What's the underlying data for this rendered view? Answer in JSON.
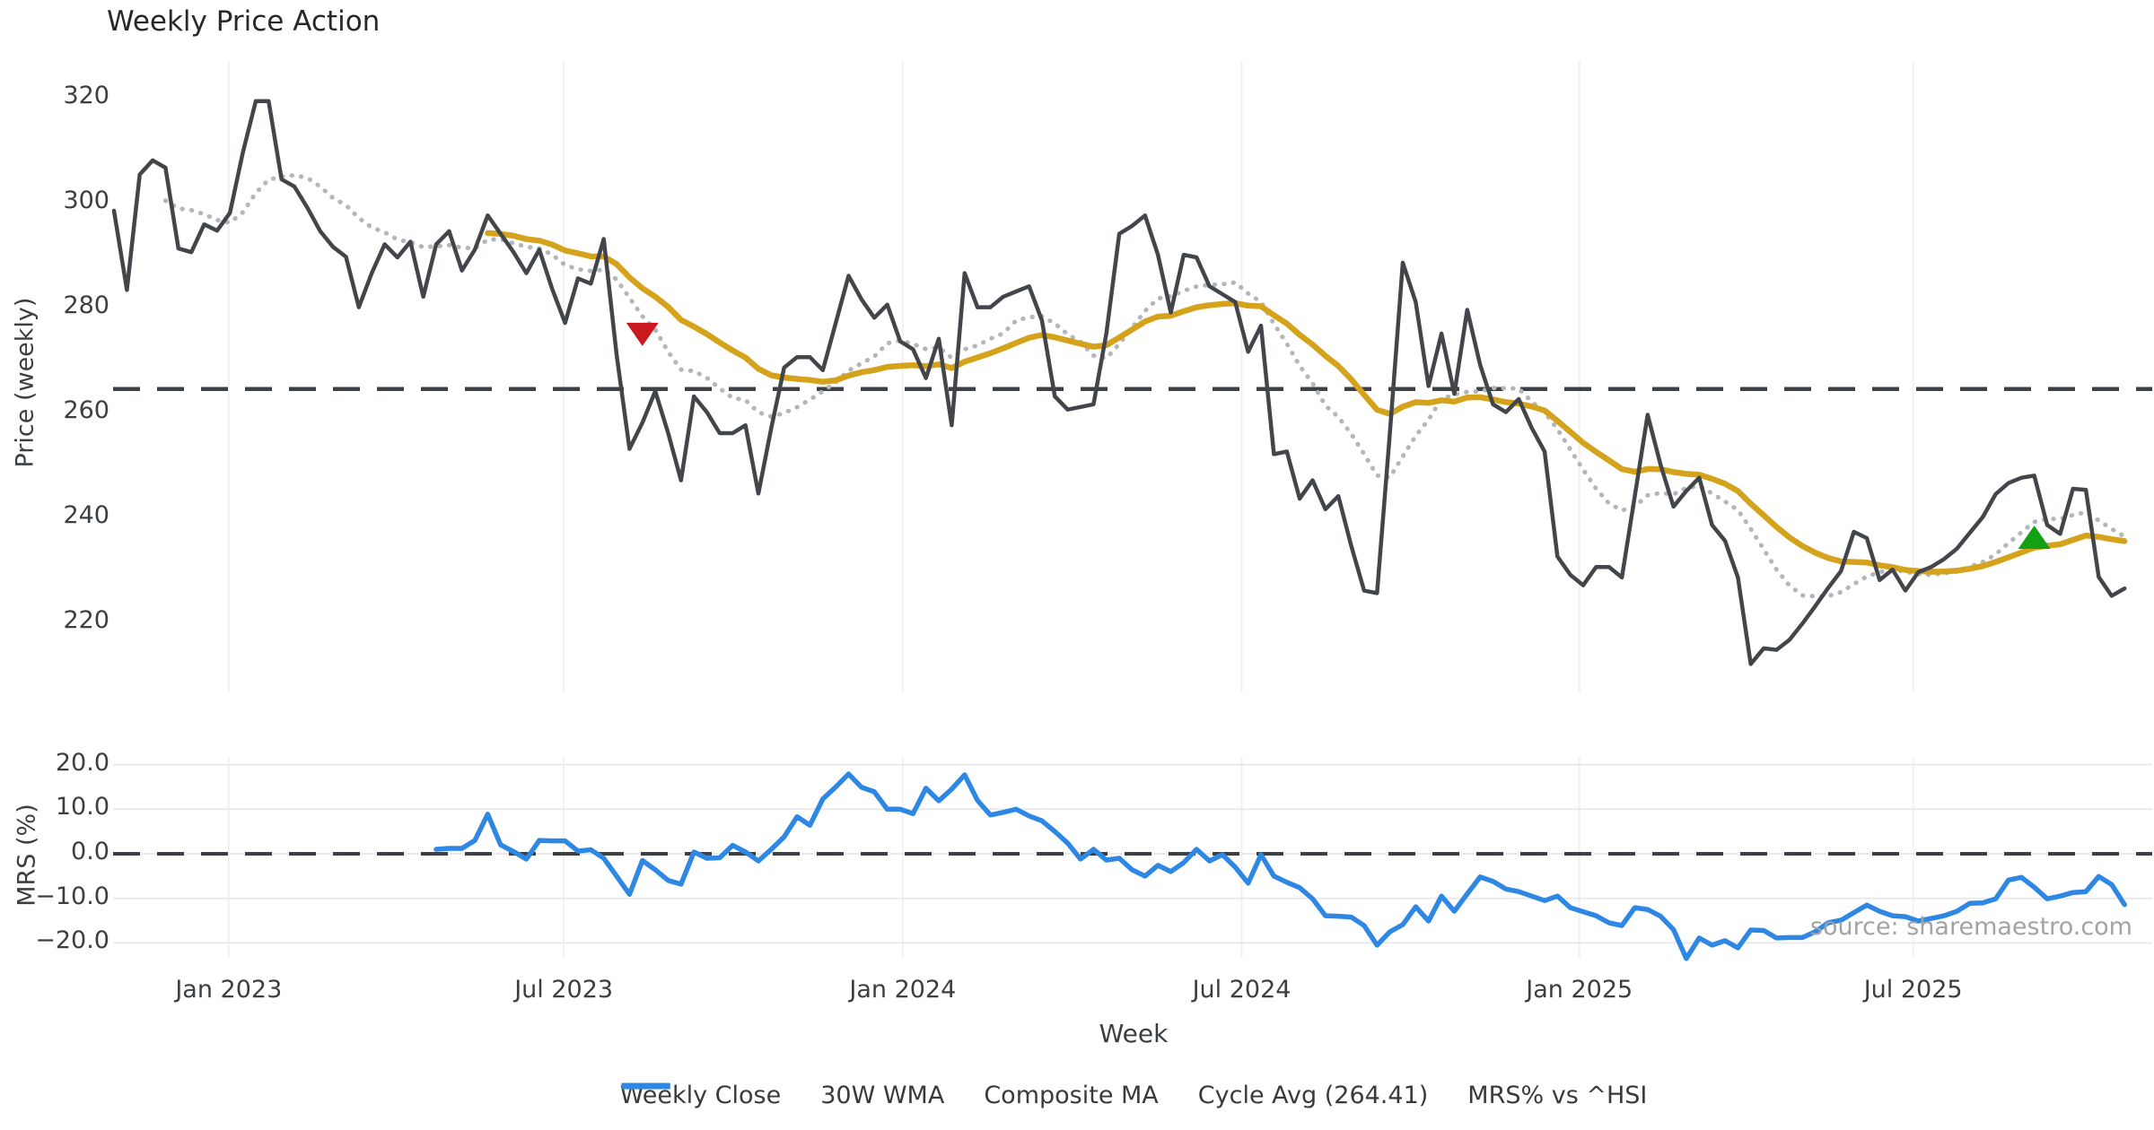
{
  "title": "Weekly Price Action",
  "source_text": "source: sharemaestro.com",
  "axes": {
    "price_label": "Price (weekly)",
    "mrs_label": "MRS (%)",
    "x_label": "Week",
    "price_ticks": [
      {
        "label": "320",
        "value": 320
      },
      {
        "label": "300",
        "value": 300
      },
      {
        "label": "280",
        "value": 280
      },
      {
        "label": "260",
        "value": 260
      },
      {
        "label": "240",
        "value": 240
      },
      {
        "label": "220",
        "value": 220
      }
    ],
    "mrs_ticks": [
      {
        "label": "20.0",
        "value": 20
      },
      {
        "label": "10.0",
        "value": 10
      },
      {
        "label": "0.0",
        "value": 0
      },
      {
        "label": "−10.0",
        "value": -10
      },
      {
        "label": "−20.0",
        "value": -20
      }
    ],
    "x_ticks": [
      {
        "label": "Jan 2023",
        "week": 8.9
      },
      {
        "label": "Jul 2023",
        "week": 34.9
      },
      {
        "label": "Jan 2024",
        "week": 61.2
      },
      {
        "label": "Jul 2024",
        "week": 87.5
      },
      {
        "label": "Jan 2025",
        "week": 113.7
      },
      {
        "label": "Jul 2025",
        "week": 139.6
      }
    ]
  },
  "legend": [
    {
      "label": "Weekly Close",
      "color": "#42464a",
      "style": "solid"
    },
    {
      "label": "30W WMA",
      "color": "#d5a21c",
      "style": "solid"
    },
    {
      "label": "Composite MA",
      "color": "#b4b7ba",
      "style": "dotted"
    },
    {
      "label": "Cycle Avg (264.41)",
      "color": "#3d4045",
      "style": "dashed"
    },
    {
      "label": "MRS% vs ^HSI",
      "color": "#2f87e4",
      "style": "solid"
    }
  ],
  "chart_data": [
    {
      "type": "line",
      "panel": "price",
      "title": "Weekly Price Action",
      "ylabel": "Price (weekly)",
      "ylim": [
        206,
        327
      ],
      "grid": "vertical-only",
      "x_unit": "week_index",
      "series": [
        {
          "name": "Weekly Close",
          "color": "#42464a",
          "start_week": 0,
          "values": [
            298.4,
            283.3,
            305.3,
            308,
            306.6,
            291.2,
            290.5,
            295.8,
            294.6,
            298,
            309.5,
            319.3,
            319.3,
            304.4,
            303,
            299,
            294.5,
            291.5,
            289.6,
            280,
            286.5,
            292,
            289.5,
            292.5,
            282,
            292,
            294.5,
            287,
            291,
            297.5,
            294,
            290.5,
            286.5,
            291,
            283.5,
            277,
            285.5,
            284.5,
            293,
            271,
            253,
            258,
            264,
            256,
            247,
            263,
            260,
            256,
            256,
            257.5,
            244.5,
            257,
            268.5,
            270.5,
            270.5,
            268,
            277,
            286,
            281.5,
            278,
            280.5,
            273.5,
            272,
            266.5,
            274,
            257.5,
            286.5,
            280,
            280,
            282,
            283,
            284,
            277.5,
            263,
            260.5,
            261,
            261.5,
            275,
            294,
            295.5,
            297.5,
            290,
            279,
            290,
            289.5,
            284,
            282.5,
            281,
            271.5,
            276.5,
            252,
            252.5,
            243.5,
            247,
            241.5,
            244,
            234.5,
            226,
            225.5,
            256,
            288.5,
            281,
            265,
            275,
            263.5,
            279.5,
            269,
            261.5,
            260,
            262.5,
            257,
            252.5,
            232.5,
            229,
            227,
            230.5,
            230.5,
            228.5,
            244,
            259.5,
            250,
            242,
            245,
            247.5,
            238.5,
            235.5,
            228.5,
            212,
            215,
            214.7,
            216.6,
            219.7,
            223,
            226.5,
            229.7,
            237.2,
            236,
            228,
            230,
            226,
            229.5,
            230.5,
            232,
            234,
            237,
            240,
            244.4,
            246.5,
            247.5,
            247.9,
            238.5,
            236.8,
            245.4,
            245.2,
            228.6,
            225,
            226.4
          ]
        },
        {
          "name": "30W WMA",
          "color": "#d5a21c",
          "derived_from": "Weekly Close",
          "method": "linear_weighted_moving_average",
          "window": 30
        },
        {
          "name": "Composite MA",
          "color": "#b4b7ba",
          "derived_from": "Weekly Close",
          "method": "mean_of_trailing_sma_5_10_20",
          "start_week": 4
        }
      ],
      "reference_lines": [
        {
          "name": "Cycle Avg",
          "value": 264.41,
          "style": "dashed",
          "color": "#3d4045"
        }
      ],
      "signals": [
        {
          "type": "sell",
          "shape": "triangle-down",
          "color": "#cb1a1f",
          "week": 41,
          "price": 275
        },
        {
          "type": "buy",
          "shape": "triangle-up",
          "color": "#14a014",
          "week": 149,
          "price": 236
        }
      ]
    },
    {
      "type": "line",
      "panel": "mrs",
      "ylabel": "MRS (%)",
      "ylim": [
        -25,
        22
      ],
      "grid": "both",
      "series": [
        {
          "name": "MRS% vs ^HSI",
          "color": "#2f87e4",
          "start_week": 25,
          "values": [
            1.0,
            1.2,
            1.2,
            3.0,
            8.9,
            2.0,
            0.5,
            -1.2,
            3.0,
            2.9,
            2.9,
            0.6,
            0.9,
            -1.0,
            -5.0,
            -9.1,
            -1.5,
            -3.6,
            -6.0,
            -6.8,
            0.4,
            -1.0,
            -0.9,
            1.9,
            0.4,
            -1.6,
            1.0,
            3.8,
            8.3,
            6.4,
            12.3,
            15.0,
            17.9,
            14.9,
            13.9,
            10.0,
            10.0,
            9.0,
            14.7,
            11.9,
            14.5,
            17.7,
            12.0,
            8.7,
            9.3,
            10.0,
            8.5,
            7.4,
            5.0,
            2.4,
            -1.2,
            1.0,
            -1.4,
            -1.0,
            -3.6,
            -5.0,
            -2.6,
            -4.0,
            -2.0,
            1.0,
            -1.6,
            -0.2,
            -3.0,
            -6.6,
            -0.2,
            -5.0,
            -6.4,
            -7.6,
            -10.1,
            -13.9,
            -14.0,
            -14.2,
            -16.1,
            -20.5,
            -17.5,
            -15.9,
            -11.9,
            -15.1,
            -9.5,
            -12.9,
            -9.0,
            -5.2,
            -6.2,
            -7.9,
            -8.5,
            -9.5,
            -10.5,
            -9.5,
            -12.1,
            -13.0,
            -13.9,
            -15.5,
            -16.1,
            -12.1,
            -12.5,
            -14.0,
            -17.0,
            -23.5,
            -18.9,
            -20.5,
            -19.5,
            -21.1,
            -17.1,
            -17.2,
            -18.9,
            -18.8,
            -18.8,
            -17.5,
            -15.5,
            -14.9,
            -13.2,
            -11.5,
            -12.9,
            -13.9,
            -14.1,
            -15.1,
            -14.5,
            -13.9,
            -12.9,
            -11.1,
            -11.0,
            -10.1,
            -5.9,
            -5.3,
            -7.5,
            -10.1,
            -9.5,
            -8.7,
            -8.5,
            -5.1,
            -6.9,
            -11.4
          ]
        }
      ],
      "reference_lines": [
        {
          "name": "zero",
          "value": 0,
          "style": "dashed",
          "color": "#3d4045"
        }
      ]
    }
  ]
}
